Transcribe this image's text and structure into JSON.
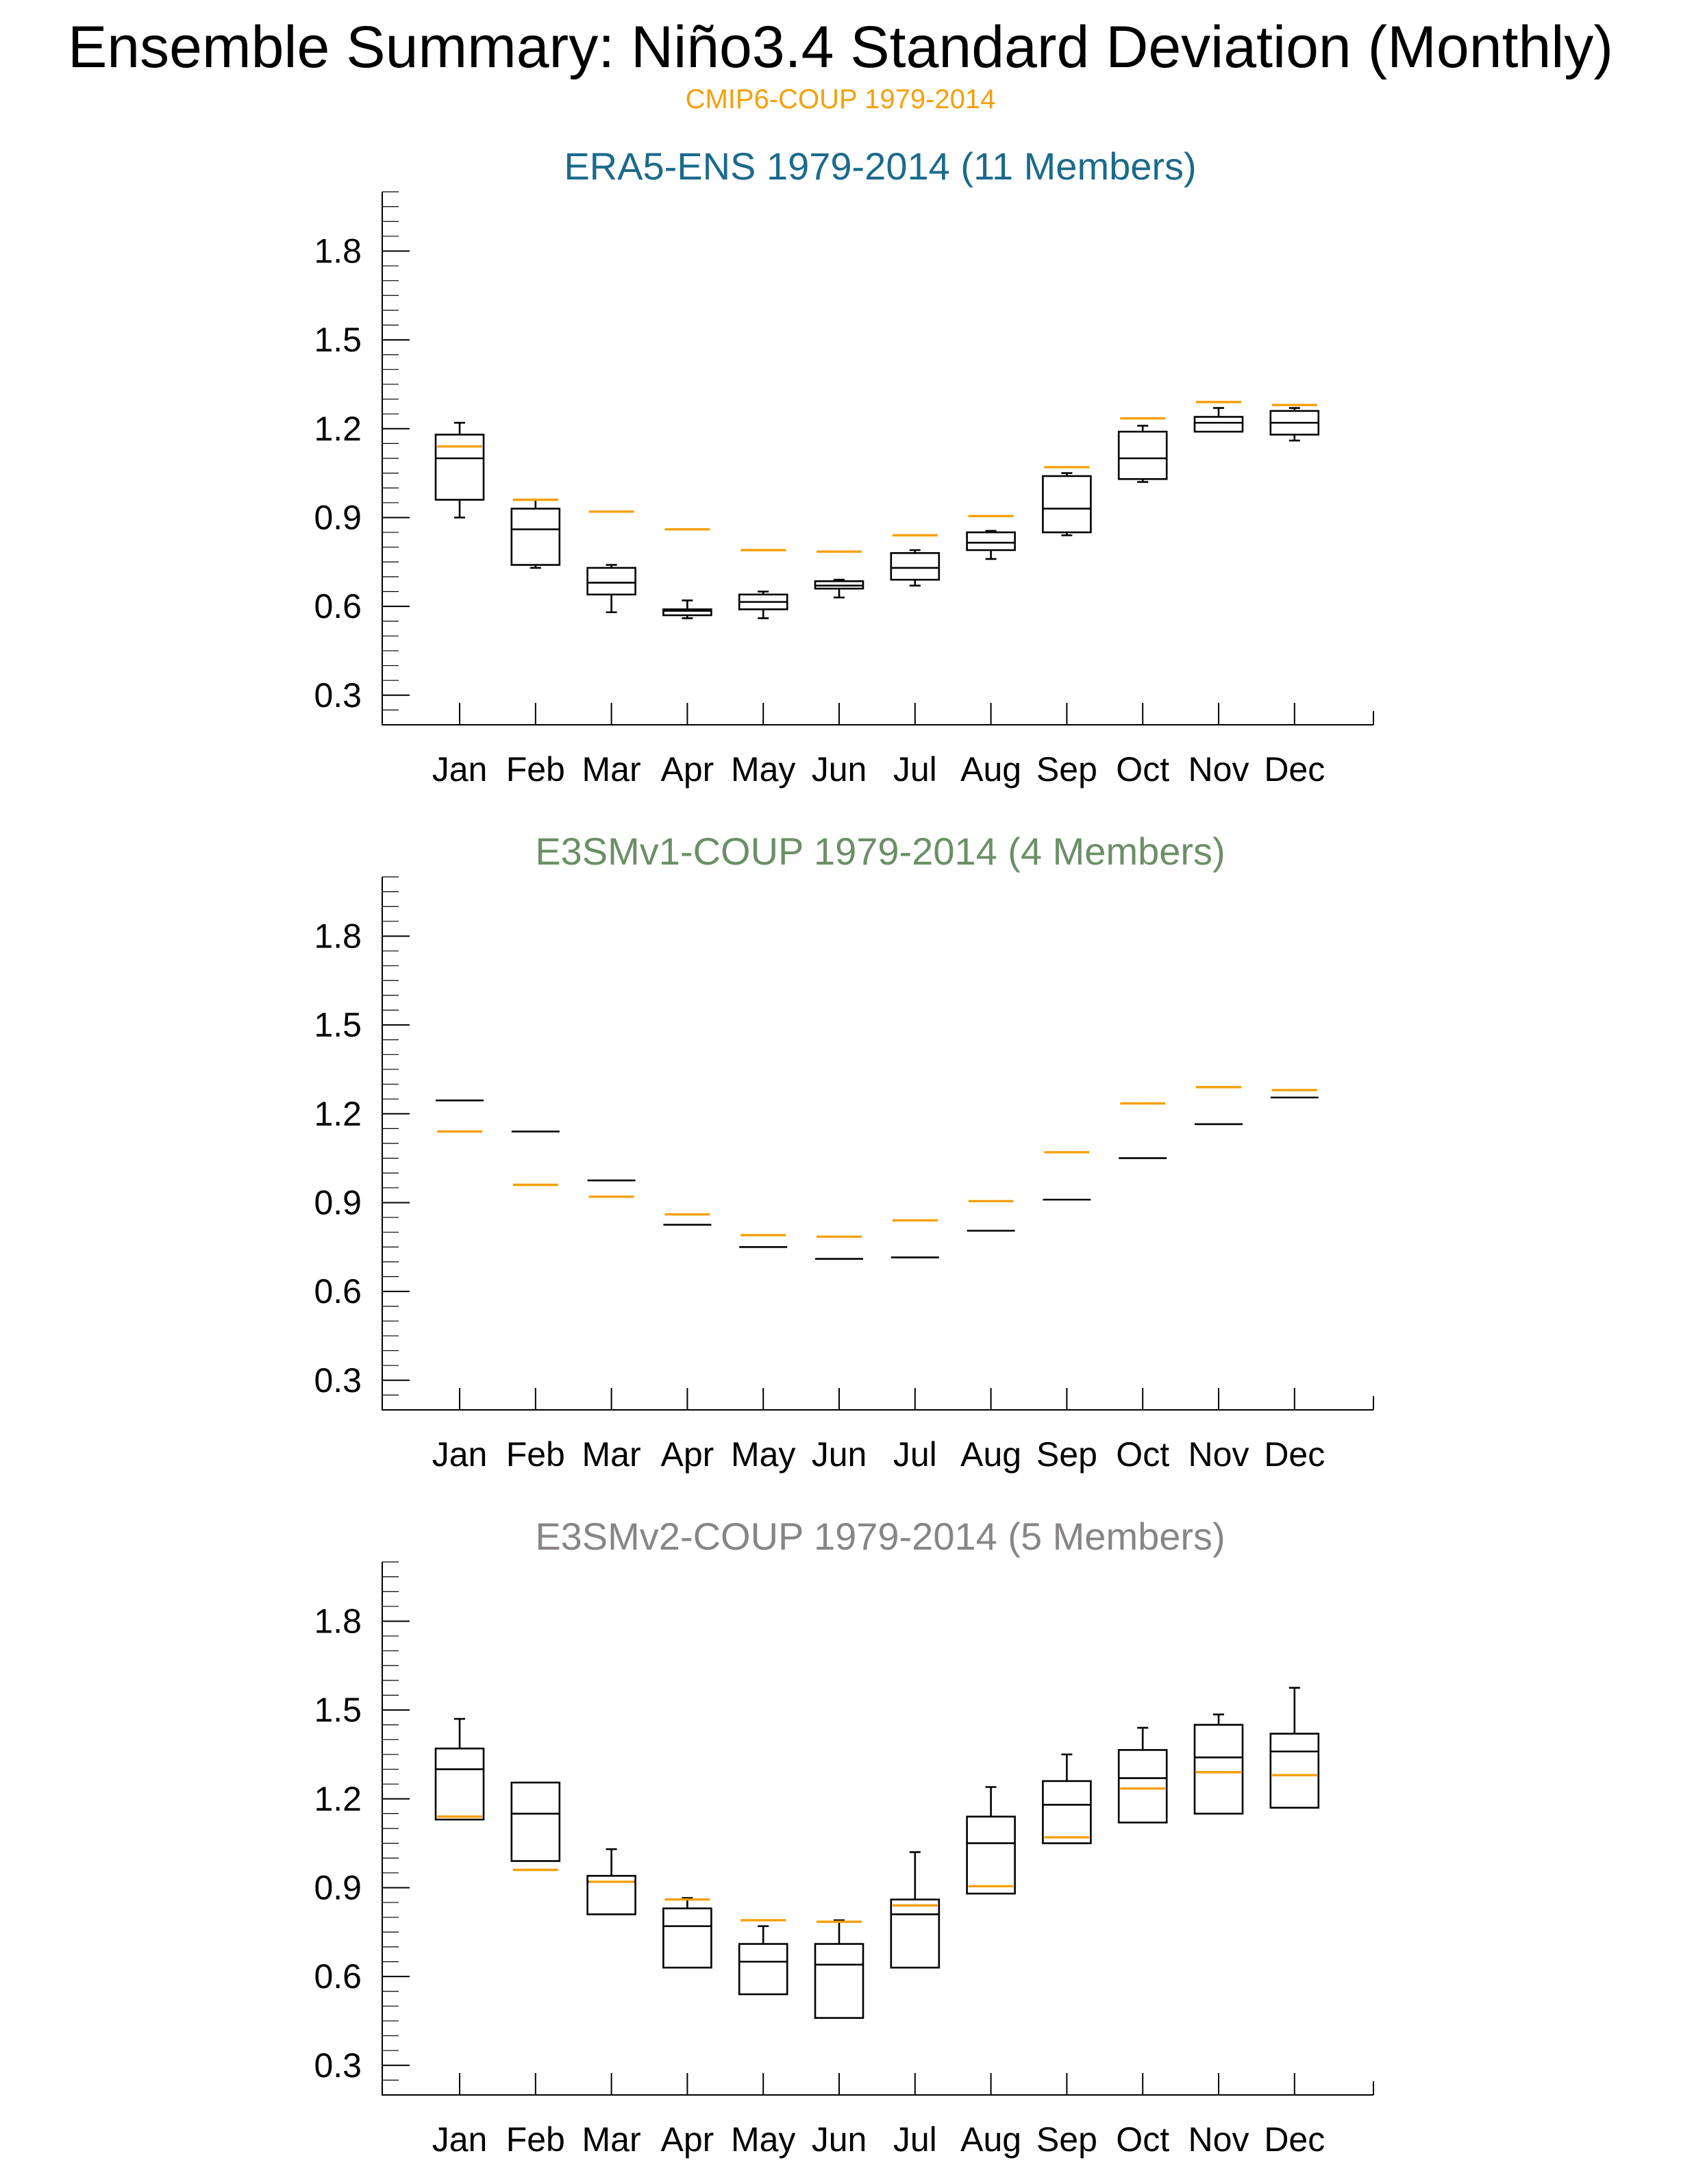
{
  "title": "Ensemble Summary: Niño3.4 Standard Deviation (Monthly)",
  "subtitle": "CMIP6-COUP 1979-2014",
  "colors": {
    "reference": "#f5a00a",
    "era5_title": "#1b6a8c",
    "e3smv1_title": "#6b8f66",
    "e3smv2_title": "#8a8585",
    "boxes": "#000000"
  },
  "chart_data": [
    {
      "type": "box",
      "title": "ERA5-ENS 1979-2014 (11 Members)",
      "categories": [
        "Jan",
        "Feb",
        "Mar",
        "Apr",
        "May",
        "Jun",
        "Jul",
        "Aug",
        "Sep",
        "Oct",
        "Nov",
        "Dec"
      ],
      "ylim": [
        0.2,
        2.0
      ],
      "yticks": [
        0.3,
        0.6,
        0.9,
        1.2,
        1.5,
        1.8
      ],
      "ytick_labels": [
        "0.3",
        "0.6",
        "0.9",
        "1.2",
        "1.5",
        "1.8"
      ],
      "reference_series": {
        "name": "CMIP6-COUP 1979-2014",
        "values": [
          1.14,
          0.96,
          0.92,
          0.86,
          0.79,
          0.785,
          0.84,
          0.905,
          1.07,
          1.235,
          1.29,
          1.28
        ]
      },
      "boxes": [
        {
          "min": 0.9,
          "q1": 0.96,
          "median": 1.1,
          "q3": 1.18,
          "max": 1.22
        },
        {
          "min": 0.73,
          "q1": 0.74,
          "median": 0.86,
          "q3": 0.93,
          "max": 0.96
        },
        {
          "min": 0.58,
          "q1": 0.64,
          "median": 0.68,
          "q3": 0.73,
          "max": 0.74
        },
        {
          "min": 0.56,
          "q1": 0.57,
          "median": 0.585,
          "q3": 0.59,
          "max": 0.62
        },
        {
          "min": 0.56,
          "q1": 0.59,
          "median": 0.615,
          "q3": 0.64,
          "max": 0.65
        },
        {
          "min": 0.63,
          "q1": 0.66,
          "median": 0.67,
          "q3": 0.685,
          "max": 0.69
        },
        {
          "min": 0.67,
          "q1": 0.69,
          "median": 0.73,
          "q3": 0.78,
          "max": 0.79
        },
        {
          "min": 0.76,
          "q1": 0.79,
          "median": 0.815,
          "q3": 0.85,
          "max": 0.855
        },
        {
          "min": 0.84,
          "q1": 0.85,
          "median": 0.93,
          "q3": 1.04,
          "max": 1.05
        },
        {
          "min": 1.02,
          "q1": 1.03,
          "median": 1.1,
          "q3": 1.19,
          "max": 1.21
        },
        {
          "min": 1.19,
          "q1": 1.19,
          "median": 1.22,
          "q3": 1.24,
          "max": 1.27
        },
        {
          "min": 1.16,
          "q1": 1.18,
          "median": 1.22,
          "q3": 1.26,
          "max": 1.27
        }
      ]
    },
    {
      "type": "box",
      "title": "E3SMv1-COUP 1979-2014 (4 Members)",
      "categories": [
        "Jan",
        "Feb",
        "Mar",
        "Apr",
        "May",
        "Jun",
        "Jul",
        "Aug",
        "Sep",
        "Oct",
        "Nov",
        "Dec"
      ],
      "ylim": [
        0.2,
        2.0
      ],
      "yticks": [
        0.3,
        0.6,
        0.9,
        1.2,
        1.5,
        1.8
      ],
      "ytick_labels": [
        "0.3",
        "0.6",
        "0.9",
        "1.2",
        "1.5",
        "1.8"
      ],
      "reference_series": {
        "name": "CMIP6-COUP 1979-2014",
        "values": [
          1.14,
          0.96,
          0.92,
          0.86,
          0.79,
          0.785,
          0.84,
          0.905,
          1.07,
          1.235,
          1.29,
          1.28
        ]
      },
      "boxes": [
        {
          "min": 1.245,
          "q1": 1.245,
          "median": 1.245,
          "q3": 1.245,
          "max": 1.245
        },
        {
          "min": 1.14,
          "q1": 1.14,
          "median": 1.14,
          "q3": 1.14,
          "max": 1.14
        },
        {
          "min": 0.975,
          "q1": 0.975,
          "median": 0.975,
          "q3": 0.975,
          "max": 0.975
        },
        {
          "min": 0.825,
          "q1": 0.825,
          "median": 0.825,
          "q3": 0.825,
          "max": 0.825
        },
        {
          "min": 0.75,
          "q1": 0.75,
          "median": 0.75,
          "q3": 0.75,
          "max": 0.75
        },
        {
          "min": 0.71,
          "q1": 0.71,
          "median": 0.71,
          "q3": 0.71,
          "max": 0.71
        },
        {
          "min": 0.715,
          "q1": 0.715,
          "median": 0.715,
          "q3": 0.715,
          "max": 0.715
        },
        {
          "min": 0.805,
          "q1": 0.805,
          "median": 0.805,
          "q3": 0.805,
          "max": 0.805
        },
        {
          "min": 0.91,
          "q1": 0.91,
          "median": 0.91,
          "q3": 0.91,
          "max": 0.91
        },
        {
          "min": 1.05,
          "q1": 1.05,
          "median": 1.05,
          "q3": 1.05,
          "max": 1.05
        },
        {
          "min": 1.165,
          "q1": 1.165,
          "median": 1.165,
          "q3": 1.165,
          "max": 1.165
        },
        {
          "min": 1.255,
          "q1": 1.255,
          "median": 1.255,
          "q3": 1.255,
          "max": 1.255
        }
      ]
    },
    {
      "type": "box",
      "title": "E3SMv2-COUP 1979-2014 (5 Members)",
      "categories": [
        "Jan",
        "Feb",
        "Mar",
        "Apr",
        "May",
        "Jun",
        "Jul",
        "Aug",
        "Sep",
        "Oct",
        "Nov",
        "Dec"
      ],
      "ylim": [
        0.2,
        2.0
      ],
      "yticks": [
        0.3,
        0.6,
        0.9,
        1.2,
        1.5,
        1.8
      ],
      "ytick_labels": [
        "0.3",
        "0.6",
        "0.9",
        "1.2",
        "1.5",
        "1.8"
      ],
      "reference_series": {
        "name": "CMIP6-COUP 1979-2014",
        "values": [
          1.14,
          0.96,
          0.92,
          0.86,
          0.79,
          0.785,
          0.84,
          0.905,
          1.07,
          1.235,
          1.29,
          1.28
        ]
      },
      "boxes": [
        {
          "min": 1.13,
          "q1": 1.13,
          "median": 1.3,
          "q3": 1.37,
          "max": 1.47
        },
        {
          "min": 0.99,
          "q1": 0.99,
          "median": 1.15,
          "q3": 1.255,
          "max": 1.255
        },
        {
          "min": 0.81,
          "q1": 0.81,
          "median": 0.92,
          "q3": 0.94,
          "max": 1.03
        },
        {
          "min": 0.63,
          "q1": 0.63,
          "median": 0.77,
          "q3": 0.83,
          "max": 0.865
        },
        {
          "min": 0.54,
          "q1": 0.54,
          "median": 0.65,
          "q3": 0.71,
          "max": 0.77
        },
        {
          "min": 0.46,
          "q1": 0.46,
          "median": 0.64,
          "q3": 0.71,
          "max": 0.79
        },
        {
          "min": 0.63,
          "q1": 0.63,
          "median": 0.81,
          "q3": 0.86,
          "max": 1.02
        },
        {
          "min": 0.88,
          "q1": 0.88,
          "median": 1.05,
          "q3": 1.14,
          "max": 1.24
        },
        {
          "min": 1.05,
          "q1": 1.05,
          "median": 1.18,
          "q3": 1.26,
          "max": 1.35
        },
        {
          "min": 1.12,
          "q1": 1.12,
          "median": 1.27,
          "q3": 1.365,
          "max": 1.44
        },
        {
          "min": 1.15,
          "q1": 1.15,
          "median": 1.34,
          "q3": 1.45,
          "max": 1.485
        },
        {
          "min": 1.17,
          "q1": 1.17,
          "median": 1.36,
          "q3": 1.42,
          "max": 1.575
        }
      ]
    }
  ]
}
